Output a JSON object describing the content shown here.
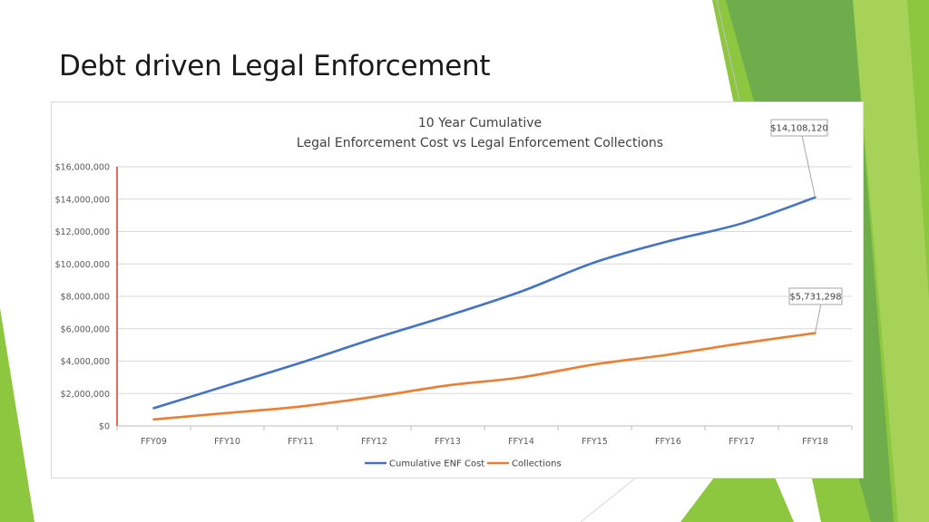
{
  "slide": {
    "title": "Debt driven Legal Enforcement",
    "accent_colors": [
      "#8dc63f",
      "#6aa84f",
      "#a8d35c"
    ]
  },
  "chart_data": {
    "type": "line",
    "title": "10 Year Cumulative",
    "subtitle": "Legal Enforcement Cost vs Legal Enforcement Collections",
    "categories": [
      "FFY09",
      "FFY10",
      "FFY11",
      "FFY12",
      "FFY13",
      "FFY14",
      "FFY15",
      "FFY16",
      "FFY17",
      "FFY18"
    ],
    "ylim": [
      0,
      16000000
    ],
    "y_ticks": [
      0,
      2000000,
      4000000,
      6000000,
      8000000,
      10000000,
      12000000,
      14000000,
      16000000
    ],
    "y_tick_labels": [
      "$0",
      "$2,000,000",
      "$4,000,000",
      "$6,000,000",
      "$8,000,000",
      "$10,000,000",
      "$12,000,000",
      "$14,000,000",
      "$16,000,000"
    ],
    "grid": true,
    "legend_position": "bottom",
    "series": [
      {
        "name": "Cumulative ENF Cost",
        "color": "#4472c4",
        "values": [
          1100000,
          2500000,
          3900000,
          5400000,
          6800000,
          8300000,
          10100000,
          11400000,
          12500000,
          14108120
        ],
        "end_label": "$14,108,120"
      },
      {
        "name": "Collections",
        "color": "#ed7d31",
        "values": [
          400000,
          800000,
          1200000,
          1800000,
          2500000,
          3000000,
          3800000,
          4400000,
          5100000,
          5731298
        ],
        "end_label": "$5,731,298"
      }
    ]
  }
}
